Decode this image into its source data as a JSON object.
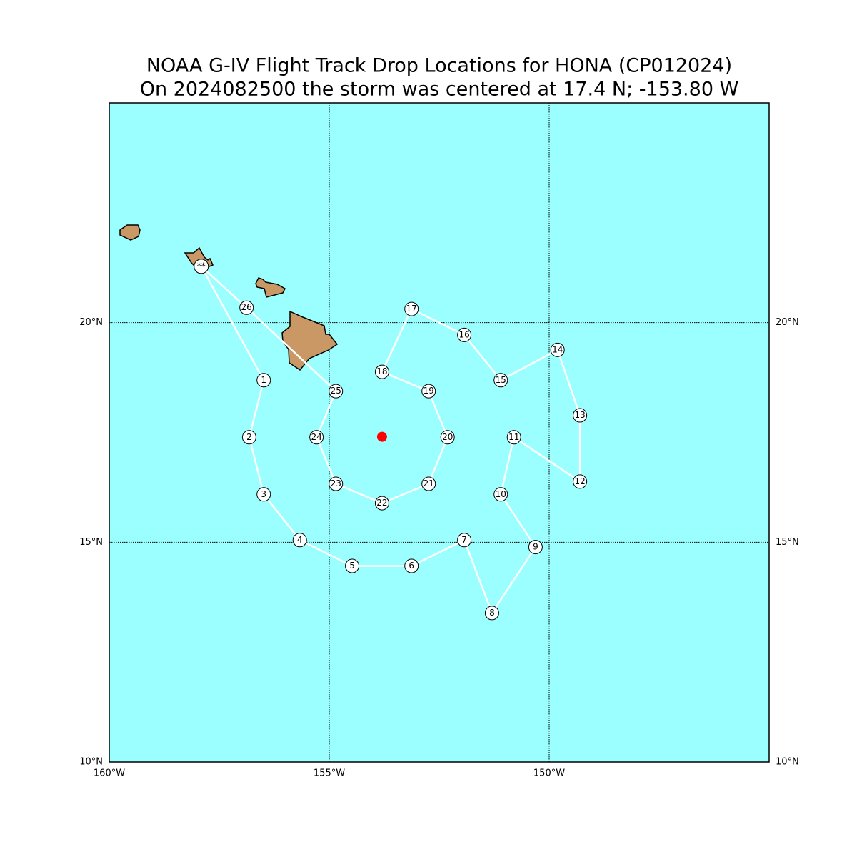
{
  "map": {
    "title": "NOAA G-IV Flight Track Drop Locations for HONA (CP012024)",
    "subtitle": "On 2024082500 the storm was centered at 17.4 N; -153.80 W",
    "xlim": [
      -160,
      -145
    ],
    "ylim": [
      10,
      25
    ],
    "xticks": [
      {
        "value": -160,
        "label": "160°W"
      },
      {
        "value": -155,
        "label": "155°W"
      },
      {
        "value": -150,
        "label": "150°W"
      }
    ],
    "yticks": [
      {
        "value": 10,
        "label": "10°N"
      },
      {
        "value": 15,
        "label": "15°N"
      },
      {
        "value": 20,
        "label": "20°N"
      }
    ],
    "storm_center": {
      "lat": 17.4,
      "lon": -153.8,
      "color": "#ff0000"
    },
    "ocean_color": "#9bffff",
    "track_color": "#ffffff",
    "drops": [
      {
        "label": "**",
        "lon": -157.91,
        "lat": 21.28
      },
      {
        "label": "1",
        "lon": -156.49,
        "lat": 18.69
      },
      {
        "label": "2",
        "lon": -156.82,
        "lat": 17.39
      },
      {
        "label": "3",
        "lon": -156.49,
        "lat": 16.09
      },
      {
        "label": "4",
        "lon": -155.67,
        "lat": 15.05
      },
      {
        "label": "5",
        "lon": -154.48,
        "lat": 14.46
      },
      {
        "label": "6",
        "lon": -153.13,
        "lat": 14.46
      },
      {
        "label": "7",
        "lon": -151.93,
        "lat": 15.05
      },
      {
        "label": "8",
        "lon": -151.3,
        "lat": 13.39
      },
      {
        "label": "9",
        "lon": -150.31,
        "lat": 14.89
      },
      {
        "label": "10",
        "lon": -151.1,
        "lat": 16.09
      },
      {
        "label": "11",
        "lon": -150.8,
        "lat": 17.39
      },
      {
        "label": "12",
        "lon": -149.3,
        "lat": 16.38
      },
      {
        "label": "13",
        "lon": -149.3,
        "lat": 17.89
      },
      {
        "label": "14",
        "lon": -149.81,
        "lat": 19.38
      },
      {
        "label": "15",
        "lon": -151.1,
        "lat": 18.69
      },
      {
        "label": "16",
        "lon": -151.93,
        "lat": 19.72
      },
      {
        "label": "17",
        "lon": -153.13,
        "lat": 20.31
      },
      {
        "label": "18",
        "lon": -153.8,
        "lat": 18.88
      },
      {
        "label": "19",
        "lon": -152.74,
        "lat": 18.44
      },
      {
        "label": "20",
        "lon": -152.31,
        "lat": 17.39
      },
      {
        "label": "21",
        "lon": -152.74,
        "lat": 16.33
      },
      {
        "label": "22",
        "lon": -153.8,
        "lat": 15.89
      },
      {
        "label": "23",
        "lon": -154.85,
        "lat": 16.33
      },
      {
        "label": "24",
        "lon": -155.29,
        "lat": 17.39
      },
      {
        "label": "25",
        "lon": -154.85,
        "lat": 18.44
      },
      {
        "label": "26",
        "lon": -156.88,
        "lat": 20.34
      }
    ]
  }
}
